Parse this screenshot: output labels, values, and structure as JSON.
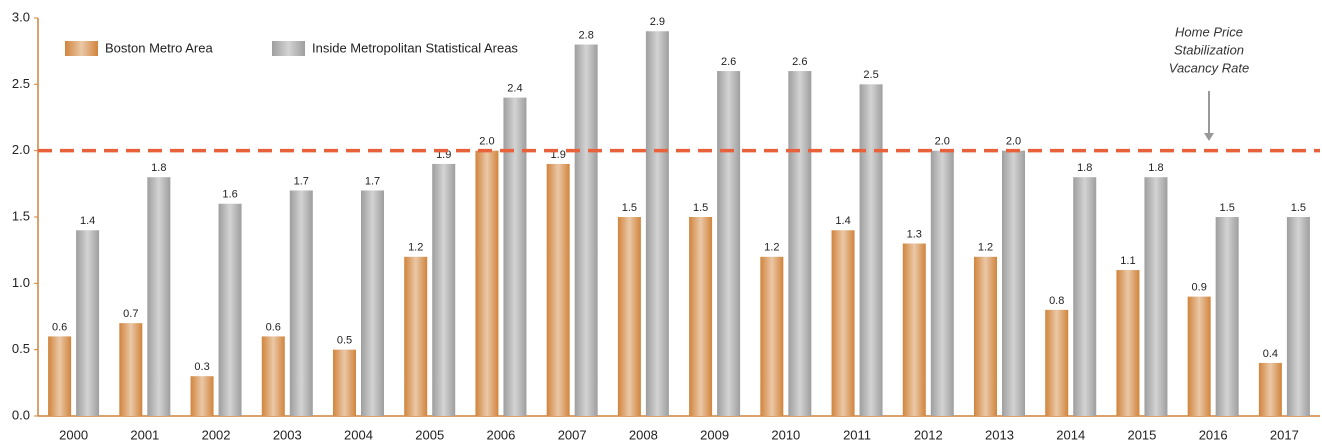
{
  "chart_data": {
    "type": "bar",
    "categories": [
      "2000",
      "2001",
      "2002",
      "2003",
      "2004",
      "2005",
      "2006",
      "2007",
      "2008",
      "2009",
      "2010",
      "2011",
      "2012",
      "2013",
      "2014",
      "2015",
      "2016",
      "2017"
    ],
    "series": [
      {
        "name": "Boston Metro Area",
        "color": "#d1843c",
        "values": [
          0.6,
          0.7,
          0.3,
          0.6,
          0.5,
          1.2,
          2.0,
          1.9,
          1.5,
          1.5,
          1.2,
          1.4,
          1.3,
          1.2,
          0.8,
          1.1,
          0.9,
          0.4
        ],
        "value_labels": [
          "0.6",
          "0.7",
          "0.3",
          "0.6",
          "0.5",
          "1.2",
          "2.0",
          "1.9",
          "1.5",
          "1.5",
          "1.2",
          "1.4",
          "1.3",
          "1.2",
          "0.8",
          "1.1",
          "0.9",
          "0.4"
        ]
      },
      {
        "name": "Inside Metropolitan Statistical Areas",
        "color": "#9e9e9e",
        "values": [
          1.4,
          1.8,
          1.6,
          1.7,
          1.7,
          1.9,
          2.4,
          2.8,
          2.9,
          2.6,
          2.6,
          2.5,
          2.0,
          2.0,
          1.8,
          1.8,
          1.5,
          1.5
        ],
        "value_labels": [
          "1.4",
          "1.8",
          "1.6",
          "1.7",
          "1.7",
          "1.9",
          "2.4",
          "2.8",
          "2.9",
          "2.6",
          "2.6",
          "2.5",
          "2.0",
          "2.0",
          "1.8",
          "1.8",
          "1.5",
          "1.5"
        ]
      }
    ],
    "ylim": [
      0,
      3
    ],
    "yticks": [
      {
        "value": 0,
        "label": "0.0"
      },
      {
        "value": 0.5,
        "label": "0.5"
      },
      {
        "value": 1,
        "label": "1.0"
      },
      {
        "value": 1.5,
        "label": "1.5"
      },
      {
        "value": 2,
        "label": "2.0"
      },
      {
        "value": 2.5,
        "label": "2.5"
      },
      {
        "value": 3,
        "label": "3.0"
      }
    ],
    "reference_line": {
      "value": 2,
      "color": "#e8613a",
      "label_lines": [
        "Home Price",
        "Stabilization",
        "Vacancy Rate"
      ]
    },
    "legend": "top-left"
  }
}
